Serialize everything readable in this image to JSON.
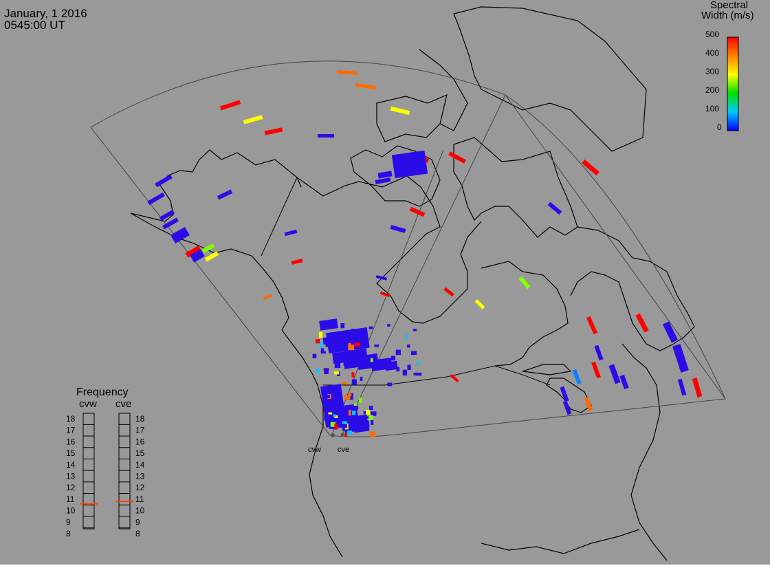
{
  "header": {
    "date": "January, 1 2016",
    "time": "0545:00 UT"
  },
  "colorbar": {
    "title_line1": "Spectral",
    "title_line2": "Width (m/s)",
    "ticks": [
      "500",
      "400",
      "300",
      "200",
      "100",
      "0"
    ]
  },
  "frequency_panel": {
    "title": "Frequency",
    "radar_west": "cvw",
    "radar_east": "cve",
    "scale": [
      "18",
      "17",
      "16",
      "15",
      "14",
      "13",
      "12",
      "11",
      "10",
      "9",
      "8"
    ],
    "cvw_mark_mhz": 10.6,
    "cve_mark_mhz": 10.8
  },
  "sites": {
    "west": "cvw",
    "east": "cve"
  },
  "colors": {
    "background": "#999999",
    "low": "#2a0ce8",
    "high": "#ff0000",
    "marker": "#ff4400"
  }
}
